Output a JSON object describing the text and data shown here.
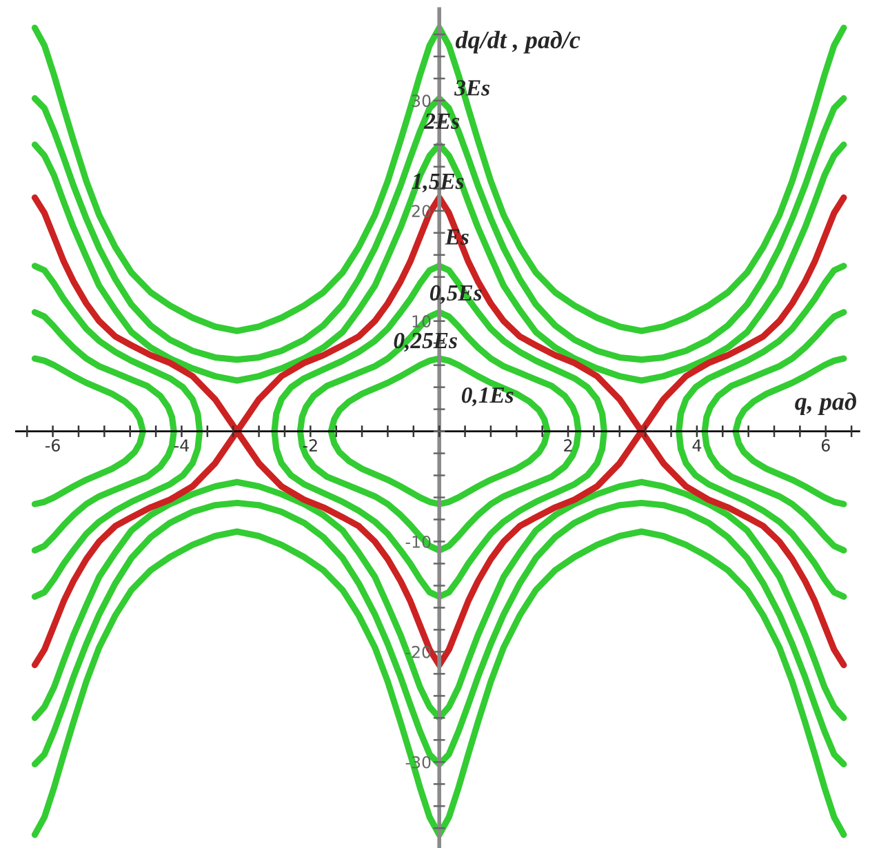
{
  "chart_data": {
    "type": "line",
    "xlabel": "q, рад",
    "ylabel": "dq/dt , рад/с",
    "line_style": "solid",
    "xlim": [
      -6.57,
      6.52
    ],
    "ylim": [
      -37.8,
      38.3
    ],
    "xticks": [
      {
        "value": -6.4,
        "label": null
      },
      -6,
      {
        "value": -5.6,
        "label": null
      },
      {
        "value": -5.2,
        "label": null
      },
      {
        "value": -4.8,
        "label": null
      },
      {
        "value": -4.4,
        "label": null
      },
      -4,
      {
        "value": -3.6,
        "label": null
      },
      {
        "value": -3.2,
        "label": null
      },
      {
        "value": -2.8,
        "label": null
      },
      {
        "value": -2.4,
        "label": null
      },
      -2,
      {
        "value": -1.6,
        "label": null
      },
      {
        "value": -1.2,
        "label": null
      },
      {
        "value": -0.8,
        "label": null
      },
      {
        "value": -0.4,
        "label": null
      },
      {
        "value": 0,
        "label": null
      },
      {
        "value": 0.4,
        "label": null
      },
      {
        "value": 0.8,
        "label": null
      },
      {
        "value": 1.2,
        "label": null
      },
      {
        "value": 1.6,
        "label": null
      },
      2,
      {
        "value": 2.4,
        "label": null
      },
      {
        "value": 2.8,
        "label": null
      },
      {
        "value": 3.2,
        "label": null
      },
      {
        "value": 3.6,
        "label": null
      },
      4,
      {
        "value": 4.4,
        "label": null
      },
      {
        "value": 4.8,
        "label": null
      },
      {
        "value": 5.2,
        "label": null
      },
      {
        "value": 5.6,
        "label": null
      },
      6,
      {
        "value": 6.4,
        "label": null
      }
    ],
    "yticks": [
      {
        "value": -36,
        "label": null
      },
      {
        "value": -34,
        "label": null
      },
      {
        "value": -32,
        "label": null
      },
      -30,
      {
        "value": -28,
        "label": null
      },
      {
        "value": -26,
        "label": null
      },
      {
        "value": -24,
        "label": null
      },
      {
        "value": -22,
        "label": null
      },
      -20,
      {
        "value": -18,
        "label": null
      },
      {
        "value": -16,
        "label": null
      },
      {
        "value": -14,
        "label": null
      },
      {
        "value": -12,
        "label": null
      },
      -10,
      {
        "value": -8,
        "label": null
      },
      {
        "value": -6,
        "label": null
      },
      {
        "value": -4,
        "label": null
      },
      {
        "value": -2,
        "label": null
      },
      {
        "value": 0,
        "label": null
      },
      {
        "value": 2,
        "label": null
      },
      {
        "value": 4,
        "label": null
      },
      {
        "value": 6,
        "label": null
      },
      {
        "value": 8,
        "label": null
      },
      10,
      {
        "value": 12,
        "label": null
      },
      {
        "value": 14,
        "label": null
      },
      {
        "value": 16,
        "label": null
      },
      {
        "value": 18,
        "label": null
      },
      20,
      {
        "value": 22,
        "label": null
      },
      {
        "value": 24,
        "label": null
      },
      {
        "value": 26,
        "label": null
      },
      {
        "value": 28,
        "label": null
      },
      30,
      {
        "value": 32,
        "label": null
      },
      {
        "value": 34,
        "label": null
      },
      {
        "value": 36,
        "label": null
      }
    ],
    "series": [
      {
        "name": "3Es",
        "color": "#33cc33",
        "x": [
          -6.28,
          -6.13,
          -5.98,
          -5.83,
          -5.68,
          -5.48,
          -5.28,
          -5.03,
          -4.78,
          -4.48,
          -4.18,
          -3.83,
          -3.48,
          -3.14,
          -2.8,
          -2.45,
          -2.1,
          -1.8,
          -1.5,
          -1.25,
          -1.0,
          -0.8,
          -0.6,
          -0.45,
          -0.3,
          -0.15,
          0,
          0.15,
          0.3,
          0.45,
          0.6,
          0.8,
          1.0,
          1.25,
          1.5,
          1.8,
          2.1,
          2.45,
          2.8,
          3.14,
          3.48,
          3.83,
          4.18,
          4.48,
          4.78,
          5.03,
          5.28,
          5.48,
          5.68,
          5.83,
          5.98,
          6.13,
          6.28,
          null,
          6.28,
          6.13,
          5.98,
          5.83,
          5.68,
          5.48,
          5.28,
          5.03,
          4.78,
          4.48,
          4.18,
          3.83,
          3.48,
          3.14,
          2.8,
          2.45,
          2.1,
          1.8,
          1.5,
          1.25,
          1.0,
          0.8,
          0.6,
          0.45,
          0.3,
          0.15,
          0,
          -0.15,
          -0.3,
          -0.45,
          -0.6,
          -0.8,
          -1.0,
          -1.25,
          -1.5,
          -1.8,
          -2.1,
          -2.45,
          -2.8,
          -3.14,
          -3.48,
          -3.83,
          -4.18,
          -4.48,
          -4.78,
          -5.03,
          -5.28,
          -5.48,
          -5.68,
          -5.83,
          -5.98,
          -6.13,
          -6.28
        ],
        "values": [
          36.6,
          35.0,
          32.3,
          29.3,
          26.4,
          22.7,
          19.6,
          16.7,
          14.4,
          12.6,
          11.4,
          10.3,
          9.5,
          9.1,
          9.5,
          10.3,
          11.4,
          12.6,
          14.4,
          16.7,
          19.6,
          22.7,
          26.4,
          29.3,
          32.3,
          35.0,
          36.6,
          35.0,
          32.3,
          29.3,
          26.4,
          22.7,
          19.6,
          16.7,
          14.4,
          12.6,
          11.4,
          10.3,
          9.5,
          9.1,
          9.5,
          10.3,
          11.4,
          12.6,
          14.4,
          16.7,
          19.6,
          22.7,
          26.4,
          29.3,
          32.3,
          35.0,
          36.6,
          null,
          -36.6,
          -35.0,
          -32.3,
          -29.3,
          -26.4,
          -22.7,
          -19.6,
          -16.7,
          -14.4,
          -12.6,
          -11.4,
          -10.3,
          -9.5,
          -9.1,
          -9.5,
          -10.3,
          -11.4,
          -12.6,
          -14.4,
          -16.7,
          -19.6,
          -22.7,
          -26.4,
          -29.3,
          -32.3,
          -35.0,
          -36.6,
          -35.0,
          -32.3,
          -29.3,
          -26.4,
          -22.7,
          -19.6,
          -16.7,
          -14.4,
          -12.6,
          -11.4,
          -10.3,
          -9.5,
          -9.1,
          -9.5,
          -10.3,
          -11.4,
          -12.6,
          -14.4,
          -16.7,
          -19.6,
          -22.7,
          -26.4,
          -29.3,
          -32.3,
          -35.0,
          -36.6
        ]
      },
      {
        "name": "2Es",
        "color": "#33cc33",
        "x": [
          -6.28,
          -6.13,
          -5.98,
          -5.83,
          -5.68,
          -5.48,
          -5.28,
          -5.03,
          -4.78,
          -4.48,
          -4.18,
          -3.83,
          -3.48,
          -3.14,
          -2.8,
          -2.45,
          -2.1,
          -1.8,
          -1.5,
          -1.25,
          -1.0,
          -0.8,
          -0.6,
          -0.45,
          -0.3,
          -0.15,
          0,
          0.15,
          0.3,
          0.45,
          0.6,
          0.8,
          1.0,
          1.25,
          1.5,
          1.8,
          2.1,
          2.45,
          2.8,
          3.14,
          3.48,
          3.83,
          4.18,
          4.48,
          4.78,
          5.03,
          5.28,
          5.48,
          5.68,
          5.83,
          5.98,
          6.13,
          6.28,
          null,
          6.28,
          6.13,
          5.98,
          5.83,
          5.68,
          5.48,
          5.28,
          5.03,
          4.78,
          4.48,
          4.18,
          3.83,
          3.48,
          3.14,
          2.8,
          2.45,
          2.1,
          1.8,
          1.5,
          1.25,
          1.0,
          0.8,
          0.6,
          0.45,
          0.3,
          0.15,
          0,
          -0.15,
          -0.3,
          -0.45,
          -0.6,
          -0.8,
          -1.0,
          -1.25,
          -1.5,
          -1.8,
          -2.1,
          -2.45,
          -2.8,
          -3.14,
          -3.48,
          -3.83,
          -4.18,
          -4.48,
          -4.78,
          -5.03,
          -5.28,
          -5.48,
          -5.68,
          -5.83,
          -5.98,
          -6.13,
          -6.28
        ],
        "values": [
          30.2,
          29.3,
          27.2,
          24.8,
          22.3,
          19.3,
          16.6,
          13.8,
          11.5,
          9.6,
          8.3,
          7.3,
          6.7,
          6.5,
          6.7,
          7.3,
          8.3,
          9.6,
          11.5,
          13.8,
          16.6,
          19.3,
          22.3,
          24.8,
          27.2,
          29.3,
          30.2,
          29.3,
          27.2,
          24.8,
          22.3,
          19.3,
          16.6,
          13.8,
          11.5,
          9.6,
          8.3,
          7.3,
          6.7,
          6.5,
          6.7,
          7.3,
          8.3,
          9.6,
          11.5,
          13.8,
          16.6,
          19.3,
          22.3,
          24.8,
          27.2,
          29.3,
          30.2,
          null,
          -30.2,
          -29.3,
          -27.2,
          -24.8,
          -22.3,
          -19.3,
          -16.6,
          -13.8,
          -11.5,
          -9.6,
          -8.3,
          -7.3,
          -6.7,
          -6.5,
          -6.7,
          -7.3,
          -8.3,
          -9.6,
          -11.5,
          -13.8,
          -16.6,
          -19.3,
          -22.3,
          -24.8,
          -27.2,
          -29.3,
          -30.2,
          -29.3,
          -27.2,
          -24.8,
          -22.3,
          -19.3,
          -16.6,
          -13.8,
          -11.5,
          -9.6,
          -8.3,
          -7.3,
          -6.7,
          -6.5,
          -6.7,
          -7.3,
          -8.3,
          -9.6,
          -11.5,
          -13.8,
          -16.6,
          -19.3,
          -22.3,
          -24.8,
          -27.2,
          -29.3,
          -30.2
        ]
      },
      {
        "name": "1,5Es",
        "color": "#33cc33",
        "x": [
          -6.28,
          -6.13,
          -5.98,
          -5.83,
          -5.68,
          -5.48,
          -5.28,
          -5.03,
          -4.78,
          -4.48,
          -4.18,
          -3.83,
          -3.48,
          -3.14,
          -2.8,
          -2.45,
          -2.1,
          -1.8,
          -1.5,
          -1.25,
          -1.0,
          -0.8,
          -0.6,
          -0.45,
          -0.3,
          -0.15,
          0,
          0.15,
          0.3,
          0.45,
          0.6,
          0.8,
          1.0,
          1.25,
          1.5,
          1.8,
          2.1,
          2.45,
          2.8,
          3.14,
          3.48,
          3.83,
          4.18,
          4.48,
          4.78,
          5.03,
          5.28,
          5.48,
          5.68,
          5.83,
          5.98,
          6.13,
          6.28,
          null,
          6.28,
          6.13,
          5.98,
          5.83,
          5.68,
          5.48,
          5.28,
          5.03,
          4.78,
          4.48,
          4.18,
          3.83,
          3.48,
          3.14,
          2.8,
          2.45,
          2.1,
          1.8,
          1.5,
          1.25,
          1.0,
          0.8,
          0.6,
          0.45,
          0.3,
          0.15,
          0,
          -0.15,
          -0.3,
          -0.45,
          -0.6,
          -0.8,
          -1.0,
          -1.25,
          -1.5,
          -1.8,
          -2.1,
          -2.45,
          -2.8,
          -3.14,
          -3.48,
          -3.83,
          -4.18,
          -4.48,
          -4.78,
          -5.03,
          -5.28,
          -5.48,
          -5.68,
          -5.83,
          -5.98,
          -6.13,
          -6.28
        ],
        "values": [
          26.0,
          25.0,
          23.2,
          20.8,
          18.5,
          15.8,
          13.2,
          11.0,
          9.0,
          7.6,
          6.6,
          5.7,
          5.0,
          4.6,
          5.0,
          5.7,
          6.6,
          7.6,
          9.0,
          11.0,
          13.2,
          15.8,
          18.5,
          20.8,
          23.2,
          25.0,
          26.0,
          25.0,
          23.2,
          20.8,
          18.5,
          15.8,
          13.2,
          11.0,
          9.0,
          7.6,
          6.6,
          5.7,
          5.0,
          4.6,
          5.0,
          5.7,
          6.6,
          7.6,
          9.0,
          11.0,
          13.2,
          15.8,
          18.5,
          20.8,
          23.2,
          25.0,
          26.0,
          null,
          -26.0,
          -25.0,
          -23.2,
          -20.8,
          -18.5,
          -15.8,
          -13.2,
          -11.0,
          -9.0,
          -7.6,
          -6.6,
          -5.7,
          -5.0,
          -4.6,
          -5.0,
          -5.7,
          -6.6,
          -7.6,
          -9.0,
          -11.0,
          -13.2,
          -15.8,
          -18.5,
          -20.8,
          -23.2,
          -25.0,
          -26.0,
          -25.0,
          -23.2,
          -20.8,
          -18.5,
          -15.8,
          -13.2,
          -11.0,
          -9.0,
          -7.6,
          -6.6,
          -5.7,
          -5.0,
          -4.6,
          -5.0,
          -5.7,
          -6.6,
          -7.6,
          -9.0,
          -11.0,
          -13.2,
          -15.8,
          -18.5,
          -20.8,
          -23.2,
          -25.0,
          -26.0
        ]
      },
      {
        "name": "Es",
        "color": "#cc2222",
        "x": [
          -6.28,
          -6.13,
          -5.98,
          -5.83,
          -5.68,
          -5.48,
          -5.28,
          -5.03,
          -4.78,
          -4.48,
          -4.18,
          -3.83,
          -3.48,
          -3.14,
          -2.8,
          -2.45,
          -2.1,
          -1.8,
          -1.5,
          -1.25,
          -1.0,
          -0.8,
          -0.6,
          -0.45,
          -0.3,
          -0.15,
          0,
          0.15,
          0.3,
          0.45,
          0.6,
          0.8,
          1.0,
          1.25,
          1.5,
          1.8,
          2.1,
          2.45,
          2.8,
          3.14,
          3.48,
          3.83,
          4.18,
          4.48,
          4.78,
          5.03,
          5.28,
          5.48,
          5.68,
          5.83,
          5.98,
          6.13,
          6.28,
          null,
          6.28,
          6.13,
          5.98,
          5.83,
          5.68,
          5.48,
          5.28,
          5.03,
          4.78,
          4.48,
          4.18,
          3.83,
          3.48,
          3.14,
          2.8,
          2.45,
          2.1,
          1.8,
          1.5,
          1.25,
          1.0,
          0.8,
          0.6,
          0.45,
          0.3,
          0.15,
          0,
          -0.15,
          -0.3,
          -0.45,
          -0.6,
          -0.8,
          -1.0,
          -1.25,
          -1.5,
          -1.8,
          -2.1,
          -2.45,
          -2.8,
          -3.14,
          -3.48,
          -3.83,
          -4.18,
          -4.48,
          -4.78,
          -5.03,
          -5.28,
          -5.48,
          -5.68,
          -5.83,
          -5.98,
          -6.13,
          -6.28
        ],
        "values": [
          21.2,
          19.8,
          17.6,
          15.4,
          13.6,
          11.6,
          10.0,
          8.6,
          7.8,
          6.9,
          6.2,
          5.0,
          2.9,
          0,
          2.9,
          5.0,
          6.2,
          6.9,
          7.8,
          8.6,
          10.0,
          11.6,
          13.6,
          15.4,
          17.6,
          19.8,
          21.2,
          19.8,
          17.6,
          15.4,
          13.6,
          11.6,
          10.0,
          8.6,
          7.8,
          6.9,
          6.2,
          5.0,
          2.9,
          0,
          2.9,
          5.0,
          6.2,
          6.9,
          7.8,
          8.6,
          10.0,
          11.6,
          13.6,
          15.4,
          17.6,
          19.8,
          21.2,
          null,
          -21.2,
          -19.8,
          -17.6,
          -15.4,
          -13.6,
          -11.6,
          -10.0,
          -8.6,
          -7.8,
          -6.9,
          -6.2,
          -5.0,
          -2.9,
          0,
          -2.9,
          -5.0,
          -6.2,
          -6.9,
          -7.8,
          -8.6,
          -10.0,
          -11.6,
          -13.6,
          -15.4,
          -17.6,
          -19.8,
          -21.2,
          -19.8,
          -17.6,
          -15.4,
          -13.6,
          -11.6,
          -10.0,
          -8.6,
          -7.8,
          -6.9,
          -6.2,
          -5.0,
          -2.9,
          0,
          -2.9,
          -5.0,
          -6.2,
          -6.9,
          -7.8,
          -8.6,
          -10.0,
          -11.6,
          -13.6,
          -15.4,
          -17.6,
          -19.8,
          -21.2
        ]
      },
      {
        "name": "0,5Es",
        "color": "#33cc33",
        "x": [
          -2.56,
          -2.53,
          -2.45,
          -2.3,
          -2.1,
          -1.8,
          -1.5,
          -1.25,
          -1.0,
          -0.8,
          -0.6,
          -0.45,
          -0.3,
          -0.15,
          0,
          0.15,
          0.3,
          0.45,
          0.6,
          0.8,
          1.0,
          1.25,
          1.5,
          1.8,
          2.1,
          2.3,
          2.45,
          2.53,
          2.56,
          null,
          2.56,
          2.53,
          2.45,
          2.3,
          2.1,
          1.8,
          1.5,
          1.25,
          1.0,
          0.8,
          0.6,
          0.45,
          0.3,
          0.15,
          0,
          -0.15,
          -0.3,
          -0.45,
          -0.6,
          -0.8,
          -1.0,
          -1.25,
          -1.5,
          -1.8,
          -2.1,
          -2.3,
          -2.45,
          -2.53,
          -2.56,
          null,
          -6.28,
          -6.13,
          -5.98,
          -5.83,
          -5.68,
          -5.48,
          -5.28,
          -5.03,
          -4.78,
          -4.48,
          -4.18,
          -3.98,
          -3.83,
          -3.75,
          -3.72,
          -3.75,
          -3.83,
          -3.98,
          -4.18,
          -4.48,
          -4.78,
          -5.03,
          -5.28,
          -5.48,
          -5.68,
          -5.83,
          -5.98,
          -6.13,
          -6.28,
          null,
          6.28,
          6.13,
          5.98,
          5.83,
          5.68,
          5.48,
          5.28,
          5.03,
          4.78,
          4.48,
          4.18,
          3.98,
          3.83,
          3.75,
          3.72,
          3.75,
          3.83,
          3.98,
          4.18,
          4.48,
          4.78,
          5.03,
          5.28,
          5.48,
          5.68,
          5.83,
          5.98,
          6.13,
          6.28
        ],
        "values": [
          0,
          1.6,
          2.9,
          4.0,
          4.8,
          5.6,
          6.4,
          7.2,
          8.2,
          9.3,
          10.8,
          12.0,
          13.4,
          14.6,
          15.0,
          14.6,
          13.4,
          12.0,
          10.8,
          9.3,
          8.2,
          7.2,
          6.4,
          5.6,
          4.8,
          4.0,
          2.9,
          1.6,
          0,
          null,
          0,
          -1.6,
          -2.9,
          -4.0,
          -4.8,
          -5.6,
          -6.4,
          -7.2,
          -8.2,
          -9.3,
          -10.8,
          -12.0,
          -13.4,
          -14.6,
          -15.0,
          -14.6,
          -13.4,
          -12.0,
          -10.8,
          -9.3,
          -8.2,
          -7.2,
          -6.4,
          -5.6,
          -4.8,
          -4.0,
          -2.9,
          -1.6,
          0,
          null,
          15.0,
          14.6,
          13.4,
          12.0,
          10.8,
          9.3,
          8.2,
          7.2,
          6.4,
          5.6,
          4.8,
          4.0,
          2.9,
          1.6,
          0,
          -1.6,
          -2.9,
          -4.0,
          -4.8,
          -5.6,
          -6.4,
          -7.2,
          -8.2,
          -9.3,
          -10.8,
          -12.0,
          -13.4,
          -14.6,
          -15.0,
          null,
          15.0,
          14.6,
          13.4,
          12.0,
          10.8,
          9.3,
          8.2,
          7.2,
          6.4,
          5.6,
          4.8,
          4.0,
          2.9,
          1.6,
          0,
          -1.6,
          -2.9,
          -4.0,
          -4.8,
          -5.6,
          -6.4,
          -7.2,
          -8.2,
          -9.3,
          -10.8,
          -12.0,
          -13.4,
          -14.6,
          -15.0
        ]
      },
      {
        "name": "0,25Es",
        "color": "#33cc33",
        "x": [
          -2.16,
          -2.13,
          -2.07,
          -1.95,
          -1.75,
          -1.5,
          -1.25,
          -1.0,
          -0.8,
          -0.6,
          -0.45,
          -0.3,
          -0.15,
          0,
          0.15,
          0.3,
          0.45,
          0.6,
          0.8,
          1.0,
          1.25,
          1.5,
          1.75,
          1.95,
          2.07,
          2.13,
          2.16,
          null,
          2.16,
          2.13,
          2.07,
          1.95,
          1.75,
          1.5,
          1.25,
          1.0,
          0.8,
          0.6,
          0.45,
          0.3,
          0.15,
          0,
          -0.15,
          -0.3,
          -0.45,
          -0.6,
          -0.8,
          -1.0,
          -1.25,
          -1.5,
          -1.75,
          -1.95,
          -2.07,
          -2.13,
          -2.16,
          null,
          -6.28,
          -6.13,
          -5.98,
          -5.83,
          -5.68,
          -5.48,
          -5.28,
          -5.03,
          -4.78,
          -4.53,
          -4.33,
          -4.21,
          -4.15,
          -4.12,
          -4.15,
          -4.21,
          -4.33,
          -4.53,
          -4.78,
          -5.03,
          -5.28,
          -5.48,
          -5.68,
          -5.83,
          -5.98,
          -6.13,
          -6.28,
          null,
          6.28,
          6.13,
          5.98,
          5.83,
          5.68,
          5.48,
          5.28,
          5.03,
          4.78,
          4.53,
          4.33,
          4.21,
          4.15,
          4.12,
          4.15,
          4.21,
          4.33,
          4.53,
          4.78,
          5.03,
          5.28,
          5.48,
          5.68,
          5.83,
          5.98,
          6.13,
          6.28
        ],
        "values": [
          0,
          1.3,
          2.2,
          3.2,
          4.1,
          4.7,
          5.3,
          5.9,
          6.6,
          7.6,
          8.5,
          9.5,
          10.4,
          10.8,
          10.4,
          9.5,
          8.5,
          7.6,
          6.6,
          5.9,
          5.3,
          4.7,
          4.1,
          3.2,
          2.2,
          1.3,
          0,
          null,
          0,
          -1.3,
          -2.2,
          -3.2,
          -4.1,
          -4.7,
          -5.3,
          -5.9,
          -6.6,
          -7.6,
          -8.5,
          -9.5,
          -10.4,
          -10.8,
          -10.4,
          -9.5,
          -8.5,
          -7.6,
          -6.6,
          -5.9,
          -5.3,
          -4.7,
          -4.1,
          -3.2,
          -2.2,
          -1.3,
          0,
          null,
          10.8,
          10.4,
          9.5,
          8.5,
          7.6,
          6.6,
          5.9,
          5.3,
          4.7,
          4.1,
          3.2,
          2.2,
          1.3,
          0,
          -1.3,
          -2.2,
          -3.2,
          -4.1,
          -4.7,
          -5.3,
          -5.9,
          -6.6,
          -7.6,
          -8.5,
          -9.5,
          -10.4,
          -10.8,
          null,
          10.8,
          10.4,
          9.5,
          8.5,
          7.6,
          6.6,
          5.9,
          5.3,
          4.7,
          4.1,
          3.2,
          2.2,
          1.3,
          0,
          -1.3,
          -2.2,
          -3.2,
          -4.1,
          -4.7,
          -5.3,
          -5.9,
          -6.6,
          -7.6,
          -8.5,
          -9.5,
          -10.4,
          -10.8
        ]
      },
      {
        "name": "0,1Es",
        "color": "#33cc33",
        "x": [
          -1.68,
          -1.63,
          -1.55,
          -1.4,
          -1.2,
          -1.0,
          -0.8,
          -0.6,
          -0.45,
          -0.3,
          -0.15,
          0,
          0.15,
          0.3,
          0.45,
          0.6,
          0.8,
          1.0,
          1.2,
          1.4,
          1.55,
          1.63,
          1.68,
          null,
          1.68,
          1.63,
          1.55,
          1.4,
          1.2,
          1.0,
          0.8,
          0.6,
          0.45,
          0.3,
          0.15,
          0,
          -0.15,
          -0.3,
          -0.45,
          -0.6,
          -0.8,
          -1.0,
          -1.2,
          -1.4,
          -1.55,
          -1.63,
          -1.68,
          null,
          -6.28,
          -6.13,
          -5.98,
          -5.83,
          -5.68,
          -5.48,
          -5.28,
          -5.08,
          -4.88,
          -4.73,
          -4.65,
          -4.6,
          -4.65,
          -4.73,
          -4.88,
          -5.08,
          -5.28,
          -5.48,
          -5.68,
          -5.83,
          -5.98,
          -6.13,
          -6.28,
          null,
          6.28,
          6.13,
          5.98,
          5.83,
          5.68,
          5.48,
          5.28,
          5.08,
          4.88,
          4.73,
          4.65,
          4.6,
          4.65,
          4.73,
          4.88,
          5.08,
          5.28,
          5.48,
          5.68,
          5.83,
          5.98,
          6.13,
          6.28
        ],
        "values": [
          0,
          1.1,
          1.9,
          2.7,
          3.4,
          3.9,
          4.4,
          5.0,
          5.5,
          6.0,
          6.4,
          6.6,
          6.4,
          6.0,
          5.5,
          5.0,
          4.4,
          3.9,
          3.4,
          2.7,
          1.9,
          1.1,
          0,
          null,
          0,
          -1.1,
          -1.9,
          -2.7,
          -3.4,
          -3.9,
          -4.4,
          -5.0,
          -5.5,
          -6.0,
          -6.4,
          -6.6,
          -6.4,
          -6.0,
          -5.5,
          -5.0,
          -4.4,
          -3.9,
          -3.4,
          -2.7,
          -1.9,
          -1.1,
          0,
          null,
          6.6,
          6.4,
          6.0,
          5.5,
          5.0,
          4.4,
          3.9,
          3.4,
          2.7,
          1.9,
          1.1,
          0,
          -1.1,
          -1.9,
          -2.7,
          -3.4,
          -3.9,
          -4.4,
          -5.0,
          -5.5,
          -6.0,
          -6.4,
          -6.6,
          null,
          6.6,
          6.4,
          6.0,
          5.5,
          5.0,
          4.4,
          3.9,
          3.4,
          2.7,
          1.9,
          1.1,
          0,
          -1.1,
          -1.9,
          -2.7,
          -3.4,
          -3.9,
          -4.4,
          -5.0,
          -5.5,
          -6.0,
          -6.4,
          -6.6
        ]
      }
    ]
  }
}
